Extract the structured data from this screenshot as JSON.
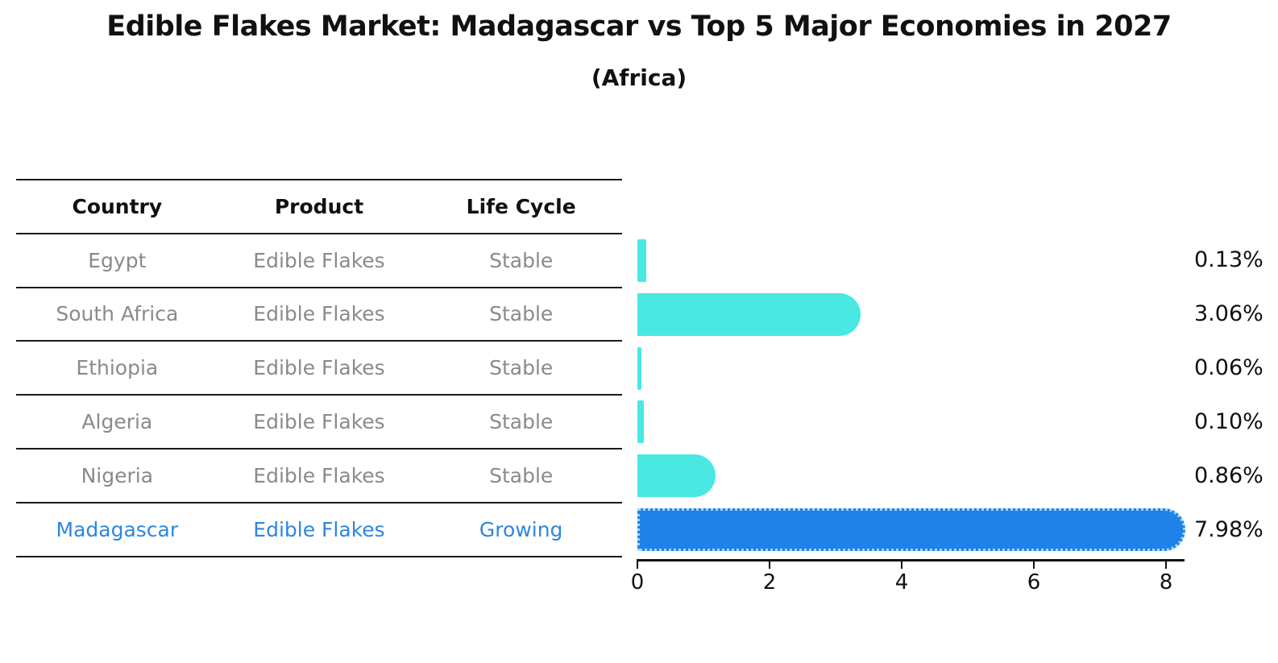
{
  "title": "Edible Flakes Market: Madagascar vs Top 5 Major Economies in 2027",
  "subtitle": "(Africa)",
  "table": {
    "headers": [
      "Country",
      "Product",
      "Life Cycle"
    ],
    "rows": [
      {
        "country": "Egypt",
        "product": "Edible Flakes",
        "life_cycle": "Stable",
        "highlighted": false
      },
      {
        "country": "South Africa",
        "product": "Edible Flakes",
        "life_cycle": "Stable",
        "highlighted": false
      },
      {
        "country": "Ethiopia",
        "product": "Edible Flakes",
        "life_cycle": "Stable",
        "highlighted": false
      },
      {
        "country": "Algeria",
        "product": "Edible Flakes",
        "life_cycle": "Stable",
        "highlighted": false
      },
      {
        "country": "Nigeria",
        "product": "Edible Flakes",
        "life_cycle": "Stable",
        "highlighted": false
      },
      {
        "country": "Madagascar",
        "product": "Edible Flakes",
        "life_cycle": "Growing",
        "highlighted": true
      }
    ]
  },
  "chart_data": {
    "type": "bar",
    "orientation": "horizontal",
    "title": "Edible Flakes Market: Madagascar vs Top 5 Major Economies in 2027",
    "subtitle": "(Africa)",
    "categories": [
      "Egypt",
      "South Africa",
      "Ethiopia",
      "Algeria",
      "Nigeria",
      "Madagascar"
    ],
    "values": [
      0.13,
      3.06,
      0.06,
      0.1,
      0.86,
      7.98
    ],
    "value_labels": [
      "0.13%",
      "3.06%",
      "0.06%",
      "0.10%",
      "0.86%",
      "7.98%"
    ],
    "x_ticks": [
      0,
      2,
      4,
      6,
      8
    ],
    "xlim": [
      0,
      8.4
    ],
    "xlabel": "",
    "ylabel": "",
    "grid": false,
    "legend": "none",
    "highlight_index": 5
  },
  "colors": {
    "bar_default": "#49E8E3",
    "bar_highlight": "#1E82E8",
    "highlight_text": "#2E86DE",
    "row_text": "#8a8a8a",
    "header_text": "#111111",
    "axis": "#111111"
  }
}
